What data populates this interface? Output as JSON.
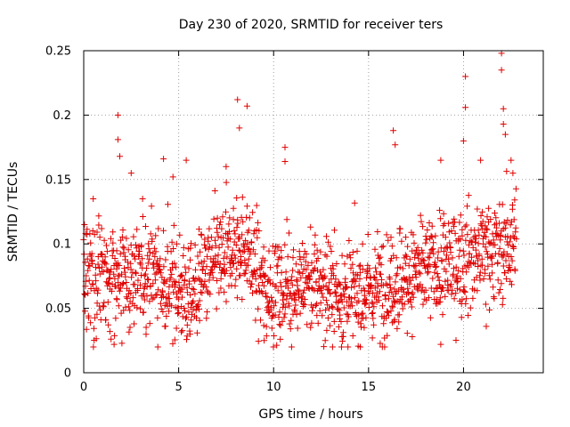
{
  "chart_data": {
    "type": "scatter",
    "title": "Day 230 of 2020, SRMTID for receiver ters",
    "xlabel": "GPS time / hours",
    "ylabel": "SRMTID / TECUs",
    "xlim": [
      0,
      24.2
    ],
    "ylim": [
      0,
      0.25
    ],
    "xticks": [
      0,
      5,
      10,
      15,
      20
    ],
    "xtick_labels": [
      "0",
      "5",
      "10",
      "15",
      "20"
    ],
    "yticks": [
      0,
      0.05,
      0.1,
      0.15,
      0.2,
      0.25
    ],
    "ytick_labels": [
      "0",
      "0.05",
      "0.1",
      "0.15",
      "0.2",
      "0.25"
    ],
    "grid": true,
    "marker": "+",
    "color": "#e00000",
    "series": [
      {
        "name": "ters",
        "approx_points": 1500,
        "x_range": [
          0,
          22.8
        ],
        "typical_range": [
          0.03,
          0.15
        ],
        "mean_profile": [
          [
            0,
            0.075
          ],
          [
            2,
            0.07
          ],
          [
            3.5,
            0.08
          ],
          [
            5.5,
            0.06
          ],
          [
            7,
            0.085
          ],
          [
            8.5,
            0.1
          ],
          [
            9.5,
            0.065
          ],
          [
            12,
            0.07
          ],
          [
            14,
            0.06
          ],
          [
            16,
            0.07
          ],
          [
            18,
            0.08
          ],
          [
            19.5,
            0.085
          ],
          [
            21,
            0.095
          ],
          [
            22.8,
            0.1
          ]
        ],
        "highlights": [
          [
            0.1,
            0.108
          ],
          [
            0.5,
            0.135
          ],
          [
            1.8,
            0.2
          ],
          [
            1.8,
            0.181
          ],
          [
            1.9,
            0.168
          ],
          [
            2.5,
            0.155
          ],
          [
            3.1,
            0.135
          ],
          [
            4.2,
            0.166
          ],
          [
            4.7,
            0.152
          ],
          [
            5.4,
            0.165
          ],
          [
            7.5,
            0.16
          ],
          [
            8.1,
            0.212
          ],
          [
            8.2,
            0.19
          ],
          [
            8.6,
            0.207
          ],
          [
            10.6,
            0.175
          ],
          [
            10.6,
            0.164
          ],
          [
            16.3,
            0.188
          ],
          [
            16.4,
            0.177
          ],
          [
            18.8,
            0.165
          ],
          [
            20.1,
            0.23
          ],
          [
            20.1,
            0.206
          ],
          [
            20.0,
            0.18
          ],
          [
            20.9,
            0.165
          ],
          [
            22.0,
            0.248
          ],
          [
            22.0,
            0.235
          ],
          [
            22.1,
            0.205
          ],
          [
            22.1,
            0.193
          ],
          [
            22.2,
            0.185
          ],
          [
            22.5,
            0.165
          ],
          [
            22.6,
            0.155
          ],
          [
            1.6,
            0.022
          ],
          [
            3.9,
            0.02
          ],
          [
            5.6,
            0.03
          ],
          [
            9.5,
            0.025
          ],
          [
            13.6,
            0.028
          ],
          [
            15.2,
            0.027
          ],
          [
            17.3,
            0.028
          ],
          [
            18.8,
            0.022
          ],
          [
            21.2,
            0.036
          ]
        ]
      }
    ]
  }
}
